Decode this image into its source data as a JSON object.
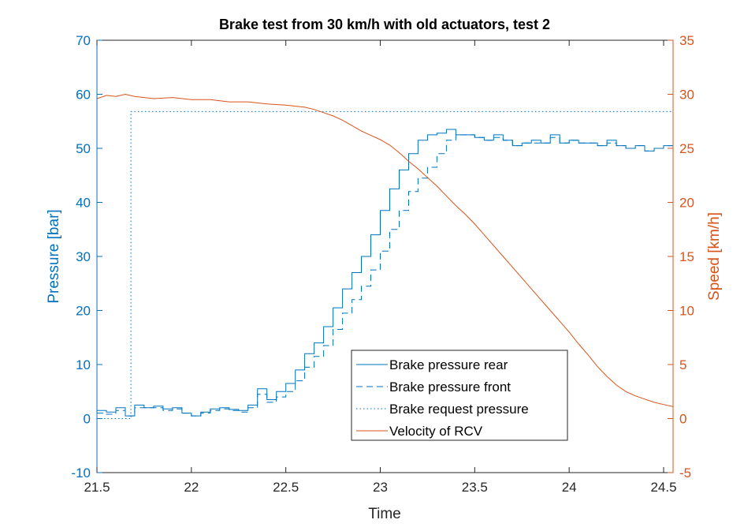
{
  "chart_data": {
    "type": "line",
    "title": "Brake test from 30 km/h with old actuators, test 2",
    "xlabel": "Time",
    "ylabel_left": "Pressure [bar]",
    "ylabel_right": "Speed [km/h]",
    "xlim": [
      21.5,
      24.55
    ],
    "ylim_left": [
      -10,
      70
    ],
    "ylim_right": [
      -5,
      35
    ],
    "xticks": [
      21.5,
      22,
      22.5,
      23,
      23.5,
      24,
      24.5
    ],
    "yticks_left": [
      -10,
      0,
      10,
      20,
      30,
      40,
      50,
      60,
      70
    ],
    "yticks_right": [
      -5,
      0,
      5,
      10,
      15,
      20,
      25,
      30,
      35
    ],
    "grid": false,
    "legend_position": "lower-center",
    "colors": {
      "pressure": "#0072BD",
      "speed": "#D95319",
      "axis": "#262626"
    },
    "series": [
      {
        "name": "Brake pressure rear",
        "axis": "left",
        "style": "solid-step",
        "x": [
          21.5,
          21.55,
          21.6,
          21.65,
          21.7,
          21.75,
          21.8,
          21.85,
          21.9,
          21.95,
          22.0,
          22.05,
          22.1,
          22.15,
          22.2,
          22.25,
          22.3,
          22.35,
          22.4,
          22.45,
          22.5,
          22.55,
          22.6,
          22.65,
          22.7,
          22.75,
          22.8,
          22.85,
          22.9,
          22.95,
          23.0,
          23.05,
          23.1,
          23.15,
          23.2,
          23.25,
          23.3,
          23.35,
          23.4,
          23.45,
          23.5,
          23.55,
          23.6,
          23.65,
          23.7,
          23.75,
          23.8,
          23.85,
          23.9,
          23.95,
          24.0,
          24.05,
          24.1,
          24.15,
          24.2,
          24.25,
          24.3,
          24.35,
          24.4,
          24.45,
          24.5,
          24.55
        ],
        "y": [
          1.5,
          1.2,
          2.0,
          0.5,
          2.5,
          2.0,
          2.3,
          1.8,
          2.0,
          1.0,
          0.5,
          1.2,
          1.8,
          2.0,
          1.7,
          1.5,
          2.5,
          5.5,
          3.5,
          5.0,
          6.5,
          9.0,
          12.0,
          14.0,
          17.0,
          20.5,
          24.0,
          27.0,
          30.0,
          34.0,
          38.5,
          42.5,
          46.0,
          49.0,
          51.5,
          52.5,
          52.8,
          53.5,
          52.5,
          52.5,
          52.0,
          51.5,
          52.5,
          51.5,
          50.5,
          51.0,
          51.5,
          51.0,
          52.5,
          51.0,
          51.5,
          51.0,
          51.0,
          50.5,
          51.5,
          50.5,
          50.0,
          50.5,
          49.5,
          50.0,
          50.5,
          50.0
        ]
      },
      {
        "name": "Brake pressure front",
        "axis": "left",
        "style": "dashed-step",
        "x": [
          21.5,
          21.55,
          21.6,
          21.65,
          21.7,
          21.75,
          21.8,
          21.85,
          21.9,
          21.95,
          22.0,
          22.05,
          22.1,
          22.15,
          22.2,
          22.25,
          22.3,
          22.35,
          22.4,
          22.45,
          22.5,
          22.55,
          22.6,
          22.65,
          22.7,
          22.75,
          22.8,
          22.85,
          22.9,
          22.95,
          23.0,
          23.05,
          23.1,
          23.15,
          23.2,
          23.25,
          23.3,
          23.35,
          23.4,
          23.45,
          23.5,
          23.55,
          23.6,
          23.65,
          23.7,
          23.75,
          23.8,
          23.85,
          23.9,
          23.95,
          24.0,
          24.05,
          24.1,
          24.15,
          24.2,
          24.25,
          24.3,
          24.35,
          24.4,
          24.45,
          24.5,
          24.55
        ],
        "y": [
          1.0,
          0.8,
          1.5,
          0.5,
          2.0,
          2.0,
          2.0,
          1.5,
          1.8,
          1.0,
          0.5,
          1.0,
          1.5,
          1.8,
          1.5,
          1.2,
          2.0,
          4.5,
          3.0,
          4.0,
          5.0,
          7.0,
          9.5,
          11.5,
          13.5,
          16.5,
          19.5,
          22.0,
          24.5,
          27.5,
          31.0,
          35.0,
          38.5,
          42.0,
          44.5,
          46.5,
          49.0,
          51.5,
          52.5,
          52.5,
          52.0,
          51.5,
          52.0,
          51.5,
          50.5,
          51.0,
          51.0,
          51.0,
          52.0,
          51.0,
          51.5,
          51.0,
          51.0,
          50.5,
          51.0,
          50.5,
          50.0,
          50.5,
          49.5,
          50.0,
          50.5,
          50.0
        ]
      },
      {
        "name": "Brake request pressure",
        "axis": "left",
        "style": "dotted",
        "x": [
          21.5,
          21.68,
          21.68,
          24.55
        ],
        "y": [
          0,
          0,
          56.8,
          56.8
        ]
      },
      {
        "name": "Velocity of RCV",
        "axis": "right",
        "style": "solid",
        "x": [
          21.5,
          21.55,
          21.6,
          21.65,
          21.7,
          21.8,
          21.9,
          22.0,
          22.1,
          22.2,
          22.3,
          22.4,
          22.5,
          22.6,
          22.65,
          22.7,
          22.75,
          22.8,
          22.85,
          22.9,
          22.95,
          23.0,
          23.05,
          23.1,
          23.15,
          23.2,
          23.25,
          23.3,
          23.35,
          23.4,
          23.45,
          23.5,
          23.55,
          23.6,
          23.65,
          23.7,
          23.75,
          23.8,
          23.85,
          23.9,
          23.95,
          24.0,
          24.05,
          24.1,
          24.15,
          24.2,
          24.25,
          24.3,
          24.35,
          24.4,
          24.45,
          24.5,
          24.55
        ],
        "y": [
          29.6,
          29.9,
          29.8,
          30.0,
          29.8,
          29.6,
          29.7,
          29.5,
          29.5,
          29.3,
          29.3,
          29.1,
          29.0,
          28.8,
          28.6,
          28.3,
          28.0,
          27.6,
          27.1,
          26.6,
          26.2,
          25.8,
          25.3,
          24.6,
          23.8,
          23.1,
          22.3,
          21.5,
          20.6,
          19.7,
          18.9,
          18.0,
          17.0,
          16.0,
          15.0,
          14.0,
          13.0,
          12.0,
          11.0,
          10.0,
          9.0,
          8.0,
          6.9,
          5.9,
          4.8,
          3.9,
          3.1,
          2.5,
          2.1,
          1.8,
          1.5,
          1.3,
          1.1
        ]
      }
    ]
  }
}
